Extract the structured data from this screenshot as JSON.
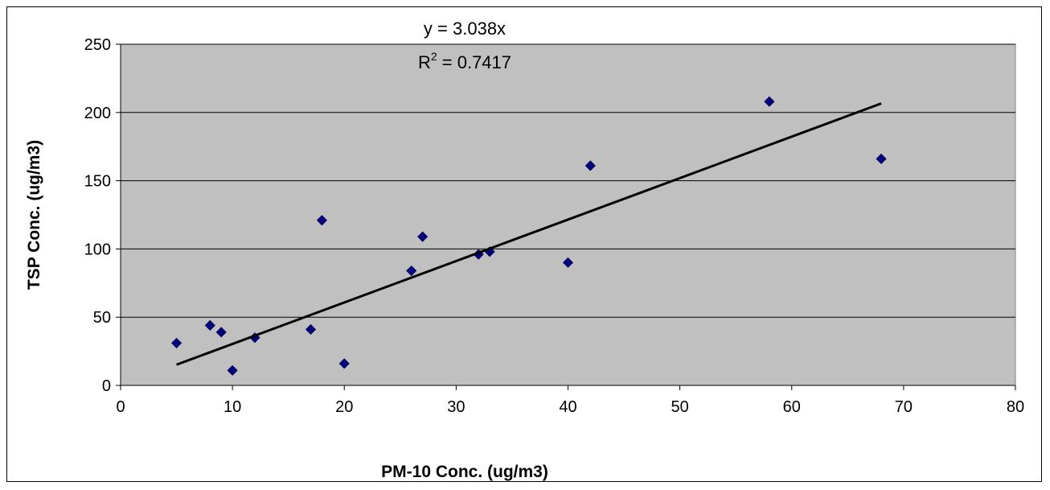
{
  "chart_data": {
    "type": "scatter",
    "xlabel": "PM-10 Conc. (ug/m3)",
    "ylabel": "TSP Conc. (ug/m3)",
    "xlim": [
      0,
      80
    ],
    "ylim": [
      0,
      250
    ],
    "x_ticks": [
      "0",
      "10",
      "20",
      "30",
      "40",
      "50",
      "60",
      "70",
      "80"
    ],
    "y_ticks": [
      "0",
      "50",
      "100",
      "150",
      "200",
      "250"
    ],
    "grid": "horizontal",
    "plot_background": "#C0C0C0",
    "marker_color": "#000080",
    "marker_shape": "diamond",
    "trendline": {
      "color": "#000000",
      "slope": 3.038,
      "x_range": [
        5,
        68
      ],
      "equation": "y = 3.038x",
      "r_squared_prefix": "R",
      "r_squared_exponent": "2",
      "r_squared_value": " = 0.7417"
    },
    "points": [
      {
        "x": 5,
        "y": 31
      },
      {
        "x": 8,
        "y": 44
      },
      {
        "x": 9,
        "y": 39
      },
      {
        "x": 10,
        "y": 11
      },
      {
        "x": 12,
        "y": 35
      },
      {
        "x": 17,
        "y": 41
      },
      {
        "x": 18,
        "y": 121
      },
      {
        "x": 20,
        "y": 16
      },
      {
        "x": 26,
        "y": 84
      },
      {
        "x": 27,
        "y": 109
      },
      {
        "x": 32,
        "y": 96
      },
      {
        "x": 33,
        "y": 98
      },
      {
        "x": 40,
        "y": 90
      },
      {
        "x": 42,
        "y": 161
      },
      {
        "x": 58,
        "y": 208
      },
      {
        "x": 68,
        "y": 166
      }
    ]
  }
}
